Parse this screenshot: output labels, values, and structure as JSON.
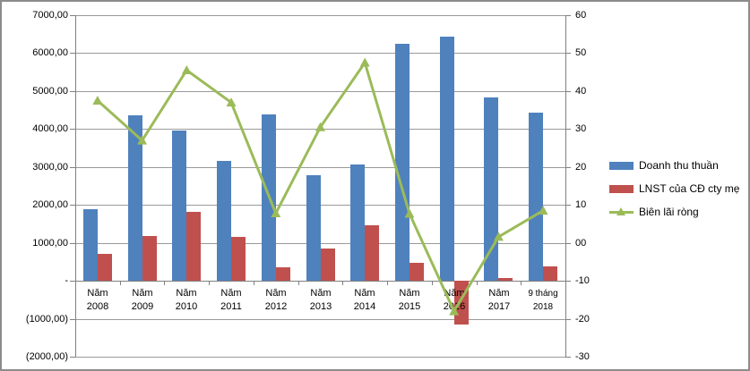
{
  "chart_data": {
    "type": "combo",
    "categories": [
      "Năm 2008",
      "Năm 2009",
      "Năm 2010",
      "Năm 2011",
      "Năm 2012",
      "Năm 2013",
      "Năm 2014",
      "Năm 2015",
      "Năm 2016",
      "Năm 2017",
      "9 tháng 2018"
    ],
    "category_label_lines": [
      [
        "Năm",
        "2008"
      ],
      [
        "Năm",
        "2009"
      ],
      [
        "Năm",
        "2010"
      ],
      [
        "Năm",
        "2011"
      ],
      [
        "Năm",
        "2012"
      ],
      [
        "Năm",
        "2013"
      ],
      [
        "Năm",
        "2014"
      ],
      [
        "Năm",
        "2015"
      ],
      [
        "Năm",
        "2016"
      ],
      [
        "Năm",
        "2017"
      ],
      [
        "9 tháng",
        "2018"
      ]
    ],
    "series": [
      {
        "name": "Doanh thu thuần",
        "type": "bar",
        "axis": "left",
        "color": "#4f81bd",
        "values": [
          1890,
          4370,
          3960,
          3150,
          4390,
          2780,
          3070,
          6250,
          6430,
          4830,
          4440
        ]
      },
      {
        "name": "LNST của CĐ cty mẹ",
        "type": "bar",
        "axis": "left",
        "color": "#c0504d",
        "values": [
          710,
          1180,
          1820,
          1160,
          350,
          850,
          1460,
          480,
          -1160,
          80,
          380
        ]
      },
      {
        "name": "Biên lãi ròng",
        "type": "line",
        "axis": "right",
        "color": "#9bbb59",
        "marker": "triangle",
        "values": [
          37.5,
          27,
          45.5,
          37,
          7.8,
          30.5,
          47.5,
          7.7,
          -18,
          1.6,
          8.5
        ]
      }
    ],
    "left_axis": {
      "min": -2000,
      "max": 7000,
      "step": 1000,
      "labels": [
        "7000,00",
        "6000,00",
        "5000,00",
        "4000,00",
        "3000,00",
        "2000,00",
        "1000,00",
        "-",
        "(1000,00)",
        "(2000,00)"
      ]
    },
    "right_axis": {
      "min": -30,
      "max": 60,
      "step": 10,
      "labels": [
        "60",
        "50",
        "40",
        "30",
        "20",
        "10",
        "00",
        "-10",
        "-20",
        "-30"
      ]
    },
    "grid": true,
    "legend_position": "right",
    "colors": {
      "grid": "#999999",
      "axis": "#808080",
      "revenue": "#4f81bd",
      "profit": "#c0504d",
      "margin": "#9bbb59"
    }
  }
}
